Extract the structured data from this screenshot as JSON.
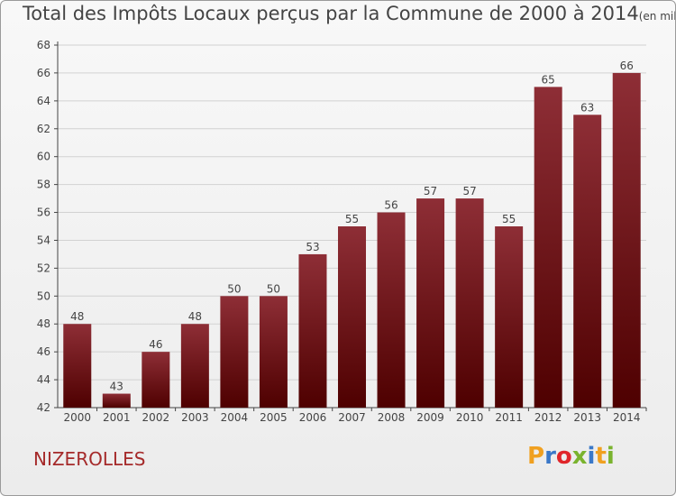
{
  "header": {
    "title": "Total des Impôts Locaux perçus par la Commune de 2000 à 2014",
    "unit": "(en milliers d'€)"
  },
  "commune": "NIZEROLLES",
  "logo": {
    "letters": [
      "P",
      "r",
      "o",
      "x",
      "i",
      "t",
      "i"
    ],
    "colors": [
      "#f0a020",
      "#3a78c8",
      "#e0252a",
      "#7ab32e",
      "#3a78c8",
      "#f0a020",
      "#7ab32e"
    ]
  },
  "colors": {
    "bar_top": "#8e2e36",
    "bar_bottom": "#4e0000",
    "grid": "#d2d2d2",
    "axis": "#444444"
  },
  "chart_data": {
    "type": "bar",
    "title": "Total des Impôts Locaux perçus par la Commune de 2000 à 2014",
    "xlabel": "",
    "ylabel": "",
    "categories": [
      "2000",
      "2001",
      "2002",
      "2003",
      "2004",
      "2005",
      "2006",
      "2007",
      "2008",
      "2009",
      "2010",
      "2011",
      "2012",
      "2013",
      "2014"
    ],
    "values": [
      48,
      43,
      46,
      48,
      50,
      50,
      53,
      55,
      56,
      57,
      57,
      55,
      65,
      63,
      66
    ],
    "ylim": [
      42,
      68
    ],
    "yticks": [
      42,
      44,
      46,
      48,
      50,
      52,
      54,
      56,
      58,
      60,
      62,
      64,
      66,
      68
    ],
    "grid": true
  }
}
